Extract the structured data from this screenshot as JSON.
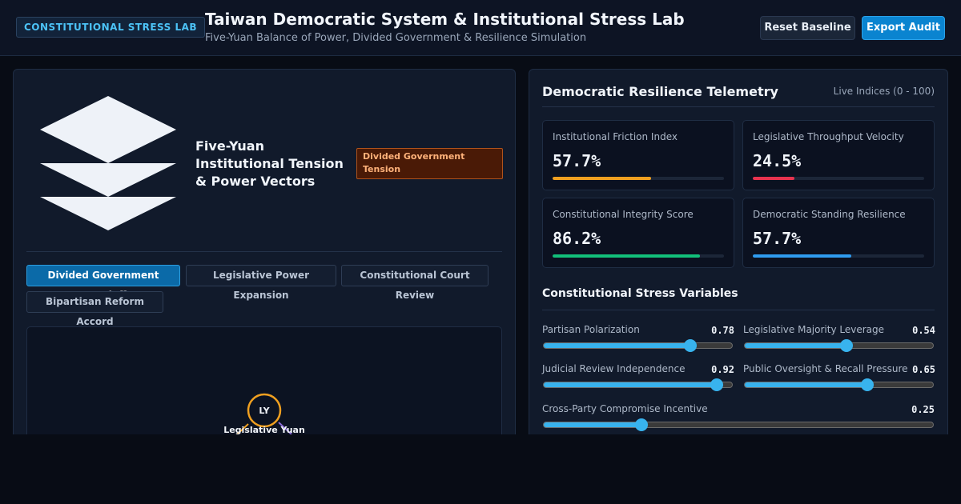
{
  "header": {
    "badge": "CONSTITUTIONAL STRESS LAB",
    "title": "Taiwan Democratic System & Institutional Stress Lab",
    "subtitle": "Five-Yuan Balance of Power, Divided Government & Resilience Simulation",
    "reset_label": "Reset Baseline",
    "export_label": "Export Audit"
  },
  "left_panel": {
    "vectors_title": "Five-Yuan Institutional Tension & Power Vectors",
    "tension_badge": "Divided Government Tension",
    "tabs": [
      {
        "label": "Divided Government Standoff",
        "active": true
      },
      {
        "label": "Legislative Power Expansion",
        "active": false
      },
      {
        "label": "Constitutional Court Review",
        "active": false
      },
      {
        "label": "Bipartisan Reform Accord",
        "active": false
      }
    ],
    "graph": {
      "node_abbrev": "LY",
      "node_label": "Legislative Yuan",
      "node_color": "#f0a020"
    }
  },
  "right_panel": {
    "telemetry_title": "Democratic Resilience Telemetry",
    "telemetry_meta": "Live Indices (0 - 100)",
    "metrics": [
      {
        "label": "Institutional Friction Index",
        "value": "57.7%",
        "fraction": 0.577,
        "color": "#f0a020"
      },
      {
        "label": "Legislative Throughput Velocity",
        "value": "24.5%",
        "fraction": 0.245,
        "color": "#e8334f"
      },
      {
        "label": "Constitutional Integrity Score",
        "value": "86.2%",
        "fraction": 0.862,
        "color": "#12c07a"
      },
      {
        "label": "Democratic Standing Resilience",
        "value": "57.7%",
        "fraction": 0.577,
        "color": "#2f9cf0"
      }
    ],
    "stress_title": "Constitutional Stress Variables",
    "sliders": [
      {
        "label": "Partisan Polarization",
        "value": "0.78",
        "fraction": 0.78
      },
      {
        "label": "Legislative Majority Leverage",
        "value": "0.54",
        "fraction": 0.54
      },
      {
        "label": "Judicial Review Independence",
        "value": "0.92",
        "fraction": 0.92
      },
      {
        "label": "Public Oversight & Recall Pressure",
        "value": "0.65",
        "fraction": 0.65
      },
      {
        "label": "Cross-Party Compromise Incentive",
        "value": "0.25",
        "fraction": 0.25
      }
    ]
  }
}
